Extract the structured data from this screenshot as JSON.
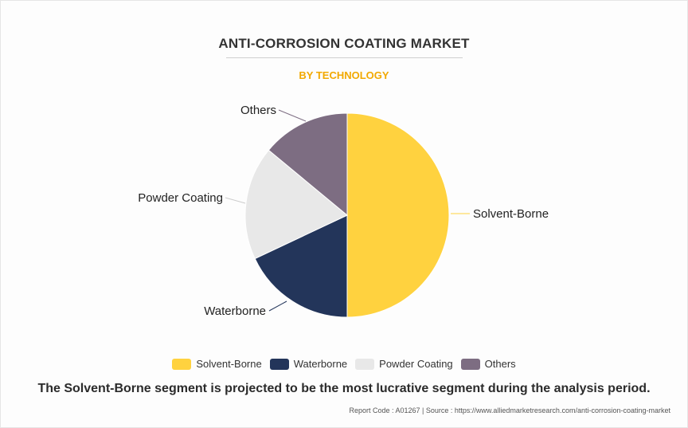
{
  "header": {
    "title": "ANTI-CORROSION COATING MARKET",
    "subtitle": "BY TECHNOLOGY",
    "subtitle_color": "#f2a900"
  },
  "chart_data": {
    "type": "pie",
    "title": "ANTI-CORROSION COATING MARKET",
    "subtitle": "BY TECHNOLOGY",
    "legend_position": "bottom",
    "slices": [
      {
        "label": "Solvent-Borne",
        "value": 50,
        "color": "#ffd23f"
      },
      {
        "label": "Waterborne",
        "value": 18,
        "color": "#23355a"
      },
      {
        "label": "Powder Coating",
        "value": 18,
        "color": "#e8e8e8"
      },
      {
        "label": "Others",
        "value": 14,
        "color": "#7d6d82"
      }
    ]
  },
  "legend": {
    "items": [
      {
        "label": "Solvent-Borne",
        "color": "#ffd23f"
      },
      {
        "label": "Waterborne",
        "color": "#23355a"
      },
      {
        "label": "Powder Coating",
        "color": "#e8e8e8"
      },
      {
        "label": "Others",
        "color": "#7d6d82"
      }
    ]
  },
  "takeaway": "The Solvent-Borne segment is projected to be the most lucrative segment during the analysis period.",
  "footer": "Report Code : A01267  |  Source : https://www.alliedmarketresearch.com/anti-corrosion-coating-market"
}
